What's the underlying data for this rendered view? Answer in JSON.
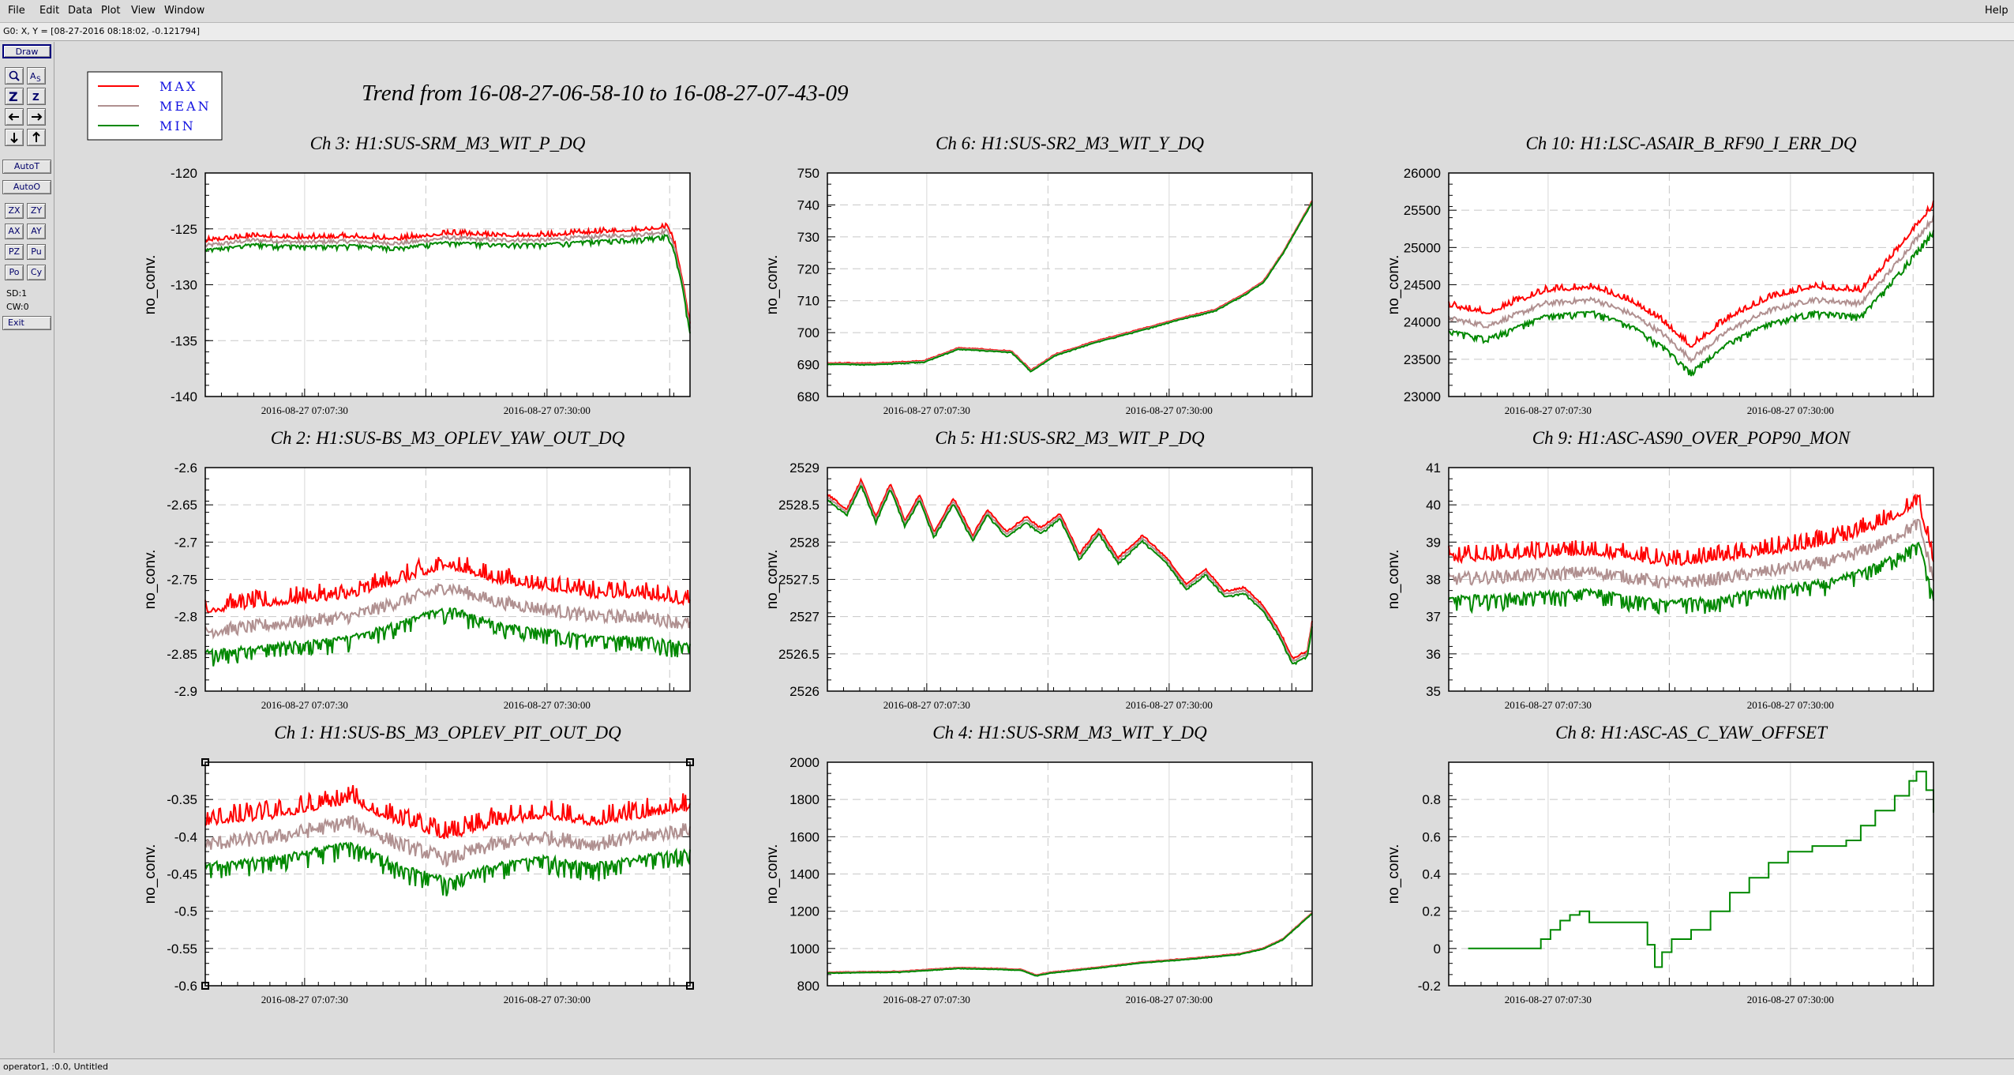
{
  "menubar": {
    "items": [
      "File",
      "Edit",
      "Data",
      "Plot",
      "View",
      "Window"
    ],
    "help": "Help"
  },
  "coord_readout": "G0: X, Y = [08-27-2016 08:18:02, -0.121794]",
  "toolbar": {
    "draw": "Draw",
    "icons": [
      "zoom-icon",
      "auto-scale-icon",
      "zoom-out-icon",
      "zoom-in-icon",
      "pan-left-icon",
      "pan-right-icon",
      "pan-down-icon",
      "pan-up-icon"
    ],
    "autot": "AutoT",
    "autoo": "AutoO",
    "buttons": [
      "ZX",
      "ZY",
      "AX",
      "AY",
      "PZ",
      "Pu",
      "Po",
      "Cy"
    ],
    "sd": "SD:1",
    "cw": "CW:0",
    "exit": "Exit"
  },
  "status": "operator1, :0.0, Untitled",
  "chart_data": {
    "type": "line",
    "title": "Trend from 16-08-27-06-58-10 to 16-08-27-07-43-09",
    "legend": {
      "placement": "top-left",
      "entries": [
        {
          "name": "MAX",
          "color": "#ff0000"
        },
        {
          "name": "MEAN",
          "color": "#b09090"
        },
        {
          "name": "MIN",
          "color": "#008800"
        }
      ]
    },
    "ylabel": "no_conv.",
    "x_ticks": [
      "2016-08-27 07:07:30",
      "2016-08-27 07:30:00"
    ],
    "grid": true,
    "panels": [
      {
        "title": "Ch 3: H1:SUS-SRM_M3_WIT_P_DQ",
        "ylim": [
          -140,
          -120
        ],
        "yticks": [
          "-120",
          "-125",
          "-130",
          "-135",
          "-140"
        ],
        "band": 0.6,
        "noise": 0.35,
        "points": [
          [
            0,
            -126.5
          ],
          [
            0.1,
            -126
          ],
          [
            0.2,
            -126.2
          ],
          [
            0.3,
            -126.1
          ],
          [
            0.4,
            -126.3
          ],
          [
            0.5,
            -125.8
          ],
          [
            0.6,
            -126
          ],
          [
            0.7,
            -126
          ],
          [
            0.8,
            -125.7
          ],
          [
            0.9,
            -125.5
          ],
          [
            0.955,
            -125.2
          ],
          [
            0.97,
            -127
          ],
          [
            0.985,
            -130
          ],
          [
            1,
            -134
          ]
        ]
      },
      {
        "title": "Ch 6: H1:SUS-SR2_M3_WIT_Y_DQ",
        "ylim": [
          680,
          750
        ],
        "yticks": [
          "750",
          "740",
          "730",
          "720",
          "710",
          "700",
          "690",
          "680"
        ],
        "band": 0.3,
        "noise": 0.2,
        "points": [
          [
            0,
            690.3
          ],
          [
            0.1,
            690.2
          ],
          [
            0.2,
            691
          ],
          [
            0.27,
            695
          ],
          [
            0.33,
            694.5
          ],
          [
            0.38,
            694
          ],
          [
            0.42,
            688
          ],
          [
            0.47,
            693
          ],
          [
            0.55,
            697
          ],
          [
            0.65,
            701
          ],
          [
            0.72,
            704
          ],
          [
            0.8,
            707
          ],
          [
            0.86,
            712
          ],
          [
            0.9,
            716
          ],
          [
            0.94,
            725
          ],
          [
            0.97,
            733
          ],
          [
            1,
            741
          ]
        ]
      },
      {
        "title": "Ch 10: H1:LSC-ASAIR_B_RF90_I_ERR_DQ",
        "ylim": [
          23000,
          26000
        ],
        "yticks": [
          "26000",
          "25500",
          "25000",
          "24500",
          "24000",
          "23500",
          "23000"
        ],
        "band": 300,
        "noise": 70,
        "points": [
          [
            0,
            24050
          ],
          [
            0.08,
            23950
          ],
          [
            0.2,
            24250
          ],
          [
            0.3,
            24300
          ],
          [
            0.38,
            24100
          ],
          [
            0.44,
            23850
          ],
          [
            0.5,
            23500
          ],
          [
            0.58,
            23900
          ],
          [
            0.66,
            24150
          ],
          [
            0.75,
            24300
          ],
          [
            0.85,
            24250
          ],
          [
            0.9,
            24600
          ],
          [
            0.95,
            25000
          ],
          [
            1,
            25400
          ]
        ]
      },
      {
        "title": "Ch 2: H1:SUS-BS_M3_OPLEV_YAW_OUT_DQ",
        "ylim": [
          -2.9,
          -2.6
        ],
        "yticks": [
          "-2.6",
          "-2.65",
          "-2.7",
          "-2.75",
          "-2.8",
          "-2.85",
          "-2.9"
        ],
        "band": 0.05,
        "noise": 0.018,
        "points": [
          [
            0,
            -2.82
          ],
          [
            0.15,
            -2.81
          ],
          [
            0.3,
            -2.8
          ],
          [
            0.45,
            -2.77
          ],
          [
            0.5,
            -2.76
          ],
          [
            0.6,
            -2.78
          ],
          [
            0.7,
            -2.79
          ],
          [
            0.8,
            -2.8
          ],
          [
            0.9,
            -2.8
          ],
          [
            1,
            -2.81
          ]
        ]
      },
      {
        "title": "Ch 5: H1:SUS-SR2_M3_WIT_P_DQ",
        "ylim": [
          2526,
          2529
        ],
        "yticks": [
          "2529",
          "2528.5",
          "2528",
          "2527.5",
          "2527",
          "2526.5",
          "2526"
        ],
        "band": 0.06,
        "noise": 0.02,
        "points": [
          [
            0,
            2528.6
          ],
          [
            0.04,
            2528.4
          ],
          [
            0.07,
            2528.8
          ],
          [
            0.1,
            2528.3
          ],
          [
            0.13,
            2528.75
          ],
          [
            0.16,
            2528.25
          ],
          [
            0.19,
            2528.6
          ],
          [
            0.22,
            2528.1
          ],
          [
            0.26,
            2528.55
          ],
          [
            0.3,
            2528.05
          ],
          [
            0.33,
            2528.4
          ],
          [
            0.37,
            2528.1
          ],
          [
            0.41,
            2528.3
          ],
          [
            0.44,
            2528.15
          ],
          [
            0.48,
            2528.35
          ],
          [
            0.52,
            2527.8
          ],
          [
            0.56,
            2528.15
          ],
          [
            0.6,
            2527.75
          ],
          [
            0.65,
            2528.05
          ],
          [
            0.7,
            2527.75
          ],
          [
            0.74,
            2527.4
          ],
          [
            0.78,
            2527.6
          ],
          [
            0.82,
            2527.3
          ],
          [
            0.86,
            2527.35
          ],
          [
            0.9,
            2527.1
          ],
          [
            0.93,
            2526.8
          ],
          [
            0.96,
            2526.4
          ],
          [
            0.99,
            2526.5
          ],
          [
            1,
            2526.9
          ]
        ]
      },
      {
        "title": "Ch 9: H1:ASC-AS90_OVER_POP90_MON",
        "ylim": [
          35,
          41
        ],
        "yticks": [
          "41",
          "40",
          "39",
          "38",
          "37",
          "36",
          "35"
        ],
        "band": 0.9,
        "noise": 0.35,
        "points": [
          [
            0,
            38
          ],
          [
            0.15,
            38.1
          ],
          [
            0.3,
            38.2
          ],
          [
            0.45,
            37.9
          ],
          [
            0.55,
            38
          ],
          [
            0.7,
            38.3
          ],
          [
            0.8,
            38.5
          ],
          [
            0.9,
            39
          ],
          [
            0.97,
            39.5
          ],
          [
            1,
            38
          ]
        ]
      },
      {
        "title": "Ch 1: H1:SUS-BS_M3_OPLEV_PIT_OUT_DQ",
        "ylim": [
          -0.6,
          -0.3
        ],
        "yticks": [
          "-0.35",
          "-0.4",
          "-0.45",
          "-0.5",
          "-0.55",
          "-0.6"
        ],
        "band": 0.05,
        "noise": 0.02,
        "points": [
          [
            0,
            -0.41
          ],
          [
            0.15,
            -0.4
          ],
          [
            0.3,
            -0.38
          ],
          [
            0.4,
            -0.41
          ],
          [
            0.5,
            -0.43
          ],
          [
            0.6,
            -0.41
          ],
          [
            0.7,
            -0.4
          ],
          [
            0.8,
            -0.41
          ],
          [
            0.9,
            -0.4
          ],
          [
            1,
            -0.39
          ]
        ]
      },
      {
        "title": "Ch 4: H1:SUS-SRM_M3_WIT_Y_DQ",
        "ylim": [
          800,
          2000
        ],
        "yticks": [
          "2000",
          "1800",
          "1600",
          "1400",
          "1200",
          "1000",
          "800"
        ],
        "band": 3,
        "noise": 2,
        "points": [
          [
            0,
            870
          ],
          [
            0.15,
            875
          ],
          [
            0.27,
            895
          ],
          [
            0.35,
            890
          ],
          [
            0.4,
            885
          ],
          [
            0.43,
            855
          ],
          [
            0.46,
            870
          ],
          [
            0.55,
            895
          ],
          [
            0.65,
            925
          ],
          [
            0.75,
            945
          ],
          [
            0.85,
            970
          ],
          [
            0.9,
            1000
          ],
          [
            0.94,
            1050
          ],
          [
            0.97,
            1120
          ],
          [
            1,
            1190
          ]
        ]
      },
      {
        "title": "Ch 8: H1:ASC-AS_C_YAW_OFFSET",
        "ylim": [
          -0.2,
          1
        ],
        "yticks": [
          "0.8",
          "0.6",
          "0.4",
          "0.2",
          "0",
          "-0.2"
        ],
        "band": 0,
        "noise": 0,
        "step": true,
        "points": [
          [
            0.04,
            0
          ],
          [
            0.17,
            0
          ],
          [
            0.19,
            0.05
          ],
          [
            0.21,
            0.1
          ],
          [
            0.23,
            0.15
          ],
          [
            0.25,
            0.18
          ],
          [
            0.27,
            0.2
          ],
          [
            0.29,
            0.14
          ],
          [
            0.39,
            0.14
          ],
          [
            0.41,
            0.02
          ],
          [
            0.425,
            -0.1
          ],
          [
            0.44,
            -0.02
          ],
          [
            0.46,
            0.05
          ],
          [
            0.5,
            0.1
          ],
          [
            0.54,
            0.2
          ],
          [
            0.58,
            0.3
          ],
          [
            0.62,
            0.38
          ],
          [
            0.66,
            0.46
          ],
          [
            0.7,
            0.52
          ],
          [
            0.75,
            0.55
          ],
          [
            0.82,
            0.58
          ],
          [
            0.85,
            0.66
          ],
          [
            0.88,
            0.74
          ],
          [
            0.92,
            0.82
          ],
          [
            0.95,
            0.9
          ],
          [
            0.965,
            0.95
          ],
          [
            0.985,
            0.85
          ],
          [
            1,
            0.73
          ]
        ]
      }
    ]
  }
}
